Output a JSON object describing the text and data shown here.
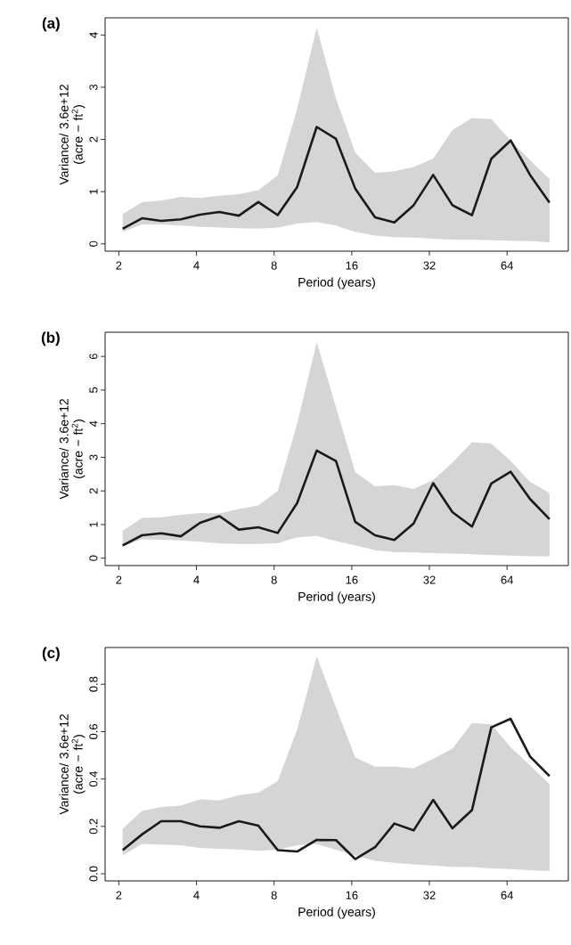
{
  "chart_data": [
    {
      "type": "line",
      "title": "(a)",
      "xlabel": "Period (years)",
      "ylabel": "Variance/ 3.6e+12 (acre − ft$^{2}$)",
      "log": "x",
      "x": [
        2.07,
        2.46,
        2.92,
        3.48,
        4.13,
        4.91,
        5.84,
        6.95,
        8.26,
        9.83,
        11.7,
        13.9,
        16.5,
        19.7,
        23.4,
        27.8,
        33.1,
        39.3,
        46.8,
        55.6,
        66.1,
        78.6,
        93.5
      ],
      "series": [
        {
          "color": "#1a1a1a",
          "values": [
            0.29,
            0.49,
            0.44,
            0.47,
            0.56,
            0.61,
            0.54,
            0.8,
            0.55,
            1.09,
            2.24,
            2.01,
            1.06,
            0.51,
            0.41,
            0.74,
            1.32,
            0.74,
            0.55,
            1.63,
            1.98,
            1.32,
            0.79
          ],
          "upper": [
            0.57,
            0.8,
            0.83,
            0.9,
            0.88,
            0.92,
            0.95,
            1.03,
            1.31,
            2.59,
            4.14,
            2.78,
            1.75,
            1.36,
            1.39,
            1.47,
            1.63,
            2.18,
            2.41,
            2.39,
            1.98,
            1.6,
            1.24
          ],
          "lower": [
            0.23,
            0.37,
            0.37,
            0.35,
            0.33,
            0.31,
            0.3,
            0.29,
            0.31,
            0.39,
            0.42,
            0.35,
            0.23,
            0.16,
            0.13,
            0.12,
            0.1,
            0.08,
            0.08,
            0.07,
            0.06,
            0.05,
            0.03
          ]
        }
      ],
      "xlim": [
        1.77,
        110.6
      ],
      "ylim": [
        -0.14,
        4.33
      ],
      "xticks": [
        2,
        4,
        8,
        16,
        32,
        64
      ],
      "yticks": [
        0,
        1,
        2,
        3,
        4
      ]
    },
    {
      "type": "line",
      "title": "(b)",
      "xlabel": "Period (years)",
      "ylabel": "Variance/ 3.6e+12 (acre − ft$^{2}$)",
      "log": "x",
      "x": [
        2.07,
        2.46,
        2.92,
        3.48,
        4.13,
        4.91,
        5.84,
        6.95,
        8.26,
        9.83,
        11.7,
        13.9,
        16.5,
        19.7,
        23.4,
        27.8,
        33.1,
        39.3,
        46.8,
        55.6,
        66.1,
        78.6,
        93.5
      ],
      "series": [
        {
          "color": "#1a1a1a",
          "values": [
            0.38,
            0.68,
            0.74,
            0.65,
            1.05,
            1.25,
            0.85,
            0.92,
            0.75,
            1.64,
            3.2,
            2.89,
            1.08,
            0.68,
            0.54,
            1.03,
            2.23,
            1.37,
            0.94,
            2.22,
            2.57,
            1.76,
            1.16
          ],
          "upper": [
            0.81,
            1.2,
            1.22,
            1.29,
            1.34,
            1.33,
            1.46,
            1.57,
            2.0,
            4.0,
            6.43,
            4.49,
            2.56,
            2.14,
            2.17,
            2.06,
            2.32,
            2.84,
            3.45,
            3.41,
            2.89,
            2.27,
            1.94
          ],
          "lower": [
            0.35,
            0.56,
            0.55,
            0.53,
            0.49,
            0.44,
            0.42,
            0.42,
            0.45,
            0.62,
            0.66,
            0.51,
            0.38,
            0.24,
            0.18,
            0.17,
            0.15,
            0.14,
            0.12,
            0.09,
            0.08,
            0.06,
            0.05
          ]
        }
      ],
      "xlim": [
        1.77,
        110.6
      ],
      "ylim": [
        -0.22,
        6.72
      ],
      "xticks": [
        2,
        4,
        8,
        16,
        32,
        64
      ],
      "yticks": [
        0,
        1,
        2,
        3,
        4,
        5,
        6
      ]
    },
    {
      "type": "line",
      "title": "(c)",
      "xlabel": "Period (years)",
      "ylabel": "Variance/ 3.6e+12 (acre − ft$^{2}$)",
      "log": "x",
      "x": [
        2.07,
        2.46,
        2.92,
        3.48,
        4.13,
        4.91,
        5.84,
        6.95,
        8.26,
        9.83,
        11.7,
        13.9,
        16.5,
        19.7,
        23.4,
        27.8,
        33.1,
        39.3,
        46.8,
        55.6,
        66.1,
        78.6,
        93.5
      ],
      "series": [
        {
          "color": "#1a1a1a",
          "values": [
            0.1,
            0.166,
            0.222,
            0.222,
            0.2,
            0.194,
            0.222,
            0.203,
            0.1,
            0.094,
            0.143,
            0.142,
            0.062,
            0.112,
            0.212,
            0.183,
            0.312,
            0.192,
            0.269,
            0.618,
            0.654,
            0.495,
            0.412
          ],
          "upper": [
            0.19,
            0.265,
            0.282,
            0.288,
            0.314,
            0.309,
            0.332,
            0.342,
            0.391,
            0.609,
            0.917,
            0.702,
            0.491,
            0.452,
            0.452,
            0.446,
            0.485,
            0.528,
            0.636,
            0.631,
            0.534,
            0.458,
            0.378
          ],
          "lower": [
            0.077,
            0.126,
            0.123,
            0.12,
            0.109,
            0.105,
            0.103,
            0.097,
            0.102,
            0.12,
            0.125,
            0.102,
            0.077,
            0.055,
            0.046,
            0.04,
            0.035,
            0.029,
            0.028,
            0.023,
            0.02,
            0.015,
            0.011
          ]
        }
      ],
      "xlim": [
        1.77,
        110.6
      ],
      "ylim": [
        -0.03,
        0.955
      ],
      "xticks": [
        2,
        4,
        8,
        16,
        32,
        64
      ],
      "yticks": [
        {
          "value": 0,
          "label": "0.0"
        },
        0.2,
        0.4,
        0.6,
        0.8
      ]
    }
  ]
}
